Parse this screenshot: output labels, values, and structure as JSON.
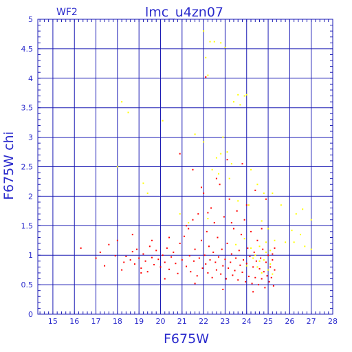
{
  "chart_data": {
    "type": "scatter",
    "title": "lmc_u4zn07",
    "subtitle": "WF2",
    "xlabel": "F675W",
    "ylabel": "F675W  chi",
    "xlim": [
      14.3,
      28.0
    ],
    "ylim": [
      0,
      5
    ],
    "xticks": [
      "15",
      "16",
      "17",
      "18",
      "19",
      "20",
      "21",
      "22",
      "23",
      "24",
      "25",
      "26",
      "27",
      "28"
    ],
    "yticks": [
      "0",
      "0.5",
      "1",
      "1.5",
      "2",
      "2.5",
      "3",
      "3.5",
      "4",
      "4.5",
      "5"
    ],
    "grid": true,
    "colors": {
      "frame": "#1a1ab4",
      "grid": "#1a1ab4",
      "text": "#2a2acc",
      "red": "#ff0000",
      "yellow": "#ffff00"
    },
    "series": [
      {
        "color": "red",
        "points": [
          [
            16.3,
            1.12
          ],
          [
            17.0,
            0.95
          ],
          [
            17.2,
            1.05
          ],
          [
            17.4,
            0.82
          ],
          [
            17.6,
            1.18
          ],
          [
            17.9,
            0.99
          ],
          [
            18.0,
            1.25
          ],
          [
            18.2,
            0.75
          ],
          [
            18.3,
            0.88
          ],
          [
            18.4,
            0.98
          ],
          [
            18.6,
            0.92
          ],
          [
            18.7,
            1.06
          ],
          [
            18.8,
            0.85
          ],
          [
            18.9,
            1.1
          ],
          [
            19.0,
            0.95
          ],
          [
            19.1,
            0.78
          ],
          [
            19.2,
            1.02
          ],
          [
            19.3,
            0.9
          ],
          [
            19.4,
            0.72
          ],
          [
            19.5,
            1.15
          ],
          [
            19.6,
            0.96
          ],
          [
            19.7,
            0.84
          ],
          [
            19.8,
            1.08
          ],
          [
            19.9,
            0.93
          ],
          [
            20.0,
            0.8
          ],
          [
            20.1,
            1.0
          ],
          [
            20.2,
            0.88
          ],
          [
            20.3,
            1.12
          ],
          [
            20.4,
            0.76
          ],
          [
            20.5,
            0.97
          ],
          [
            20.6,
            1.05
          ],
          [
            20.7,
            0.86
          ],
          [
            20.8,
            0.69
          ],
          [
            20.9,
            1.2
          ],
          [
            21.0,
            0.92
          ],
          [
            21.1,
            1.32
          ],
          [
            21.2,
            0.81
          ],
          [
            21.3,
            1.45
          ],
          [
            21.35,
            0.99
          ],
          [
            21.4,
            0.72
          ],
          [
            21.5,
            1.6
          ],
          [
            21.55,
            0.9
          ],
          [
            21.6,
            1.1
          ],
          [
            21.7,
            0.65
          ],
          [
            21.75,
            1.7
          ],
          [
            21.8,
            0.95
          ],
          [
            21.9,
            1.25
          ],
          [
            21.95,
            0.78
          ],
          [
            22.0,
            2.05
          ],
          [
            22.05,
            1.0
          ],
          [
            22.1,
            0.85
          ],
          [
            22.15,
            1.4
          ],
          [
            22.2,
            0.7
          ],
          [
            22.25,
            1.15
          ],
          [
            22.3,
            0.92
          ],
          [
            22.35,
            1.8
          ],
          [
            22.4,
            0.62
          ],
          [
            22.45,
            1.05
          ],
          [
            22.5,
            1.55
          ],
          [
            22.55,
            0.88
          ],
          [
            22.6,
            0.75
          ],
          [
            22.65,
            1.3
          ],
          [
            22.7,
            0.97
          ],
          [
            22.75,
            2.2
          ],
          [
            22.8,
            0.68
          ],
          [
            22.85,
            1.1
          ],
          [
            22.9,
            0.82
          ],
          [
            22.95,
            1.65
          ],
          [
            23.0,
            0.93
          ],
          [
            23.05,
            0.6
          ],
          [
            23.1,
            1.2
          ],
          [
            23.15,
            0.78
          ],
          [
            23.2,
            1.95
          ],
          [
            23.25,
            0.88
          ],
          [
            23.3,
            1.02
          ],
          [
            23.35,
            0.66
          ],
          [
            23.4,
            1.45
          ],
          [
            23.45,
            0.74
          ],
          [
            23.5,
            0.95
          ],
          [
            23.55,
            1.75
          ],
          [
            23.6,
            0.58
          ],
          [
            23.65,
            1.08
          ],
          [
            23.7,
            0.83
          ],
          [
            23.75,
            1.35
          ],
          [
            23.8,
            0.71
          ],
          [
            23.85,
            0.92
          ],
          [
            23.9,
            1.6
          ],
          [
            23.95,
            0.55
          ],
          [
            24.0,
            0.86
          ],
          [
            24.05,
            1.12
          ],
          [
            24.1,
            0.64
          ],
          [
            24.15,
            0.98
          ],
          [
            24.2,
            1.4
          ],
          [
            24.25,
            0.52
          ],
          [
            24.3,
            0.8
          ],
          [
            24.35,
            1.05
          ],
          [
            24.4,
            0.62
          ],
          [
            24.45,
            0.9
          ],
          [
            24.5,
            1.25
          ],
          [
            24.55,
            0.5
          ],
          [
            24.6,
            0.77
          ],
          [
            24.65,
            0.95
          ],
          [
            24.7,
            0.6
          ],
          [
            24.75,
            1.1
          ],
          [
            24.8,
            0.72
          ],
          [
            24.85,
            0.45
          ],
          [
            24.9,
            0.88
          ],
          [
            24.95,
            0.65
          ],
          [
            25.0,
            1.0
          ],
          [
            25.05,
            0.55
          ],
          [
            25.1,
            0.8
          ],
          [
            25.15,
            0.62
          ],
          [
            25.2,
            0.92
          ],
          [
            25.25,
            0.48
          ],
          [
            25.3,
            0.75
          ],
          [
            22.1,
            4.02
          ],
          [
            20.9,
            2.72
          ],
          [
            21.5,
            2.45
          ],
          [
            22.6,
            2.3
          ],
          [
            23.8,
            2.55
          ],
          [
            24.4,
            2.1
          ],
          [
            23.1,
            2.62
          ],
          [
            21.9,
            2.15
          ],
          [
            24.9,
            1.95
          ],
          [
            22.2,
            1.72
          ],
          [
            21.2,
            1.5
          ],
          [
            24.0,
            1.85
          ],
          [
            23.3,
            1.55
          ],
          [
            24.7,
            1.45
          ],
          [
            20.4,
            1.3
          ],
          [
            19.6,
            1.25
          ],
          [
            18.7,
            1.35
          ],
          [
            25.3,
            1.12
          ],
          [
            25.2,
            1.02
          ],
          [
            24.3,
            0.38
          ],
          [
            22.9,
            0.42
          ],
          [
            21.6,
            0.52
          ],
          [
            20.2,
            0.6
          ],
          [
            19.1,
            0.7
          ]
        ]
      },
      {
        "color": "yellow",
        "points": [
          [
            22.0,
            4.8
          ],
          [
            22.3,
            4.62
          ],
          [
            22.5,
            4.62
          ],
          [
            22.8,
            4.6
          ],
          [
            23.0,
            4.52
          ],
          [
            22.1,
            4.35
          ],
          [
            22.2,
            4.05
          ],
          [
            23.6,
            3.72
          ],
          [
            23.9,
            3.7
          ],
          [
            24.0,
            3.72
          ],
          [
            23.4,
            3.6
          ],
          [
            23.7,
            3.55
          ],
          [
            18.2,
            3.6
          ],
          [
            18.5,
            3.42
          ],
          [
            20.1,
            3.28
          ],
          [
            21.6,
            3.05
          ],
          [
            22.0,
            2.92
          ],
          [
            22.9,
            3.0
          ],
          [
            23.1,
            2.75
          ],
          [
            22.6,
            2.65
          ],
          [
            22.8,
            2.72
          ],
          [
            23.3,
            2.55
          ],
          [
            22.4,
            2.45
          ],
          [
            22.7,
            2.38
          ],
          [
            23.2,
            2.3
          ],
          [
            24.2,
            2.45
          ],
          [
            24.5,
            2.2
          ],
          [
            24.8,
            2.05
          ],
          [
            25.2,
            2.05
          ],
          [
            25.6,
            1.85
          ],
          [
            26.3,
            1.7
          ],
          [
            26.6,
            1.78
          ],
          [
            27.0,
            1.6
          ],
          [
            26.1,
            1.42
          ],
          [
            26.5,
            1.35
          ],
          [
            25.8,
            1.22
          ],
          [
            18.0,
            2.5
          ],
          [
            19.4,
            2.05
          ],
          [
            19.2,
            2.22
          ],
          [
            20.9,
            1.7
          ],
          [
            21.3,
            1.55
          ],
          [
            22.2,
            1.62
          ],
          [
            23.6,
            1.92
          ],
          [
            24.1,
            1.85
          ],
          [
            24.7,
            1.58
          ],
          [
            25.0,
            1.45
          ],
          [
            25.3,
            1.25
          ],
          [
            24.6,
            1.15
          ],
          [
            24.9,
            1.05
          ],
          [
            24.4,
            1.0
          ],
          [
            24.8,
            0.92
          ],
          [
            25.1,
            0.85
          ],
          [
            24.5,
            0.8
          ],
          [
            24.3,
            0.95
          ],
          [
            25.0,
            0.75
          ],
          [
            24.7,
            0.7
          ],
          [
            24.2,
            1.12
          ],
          [
            23.9,
            1.28
          ],
          [
            23.5,
            1.18
          ],
          [
            25.2,
            0.68
          ],
          [
            24.9,
            1.22
          ],
          [
            24.6,
            0.9
          ],
          [
            25.1,
            1.08
          ],
          [
            24.0,
            0.82
          ],
          [
            26.2,
            1.22
          ],
          [
            26.7,
            1.15
          ],
          [
            27.0,
            1.1
          ]
        ]
      }
    ]
  }
}
